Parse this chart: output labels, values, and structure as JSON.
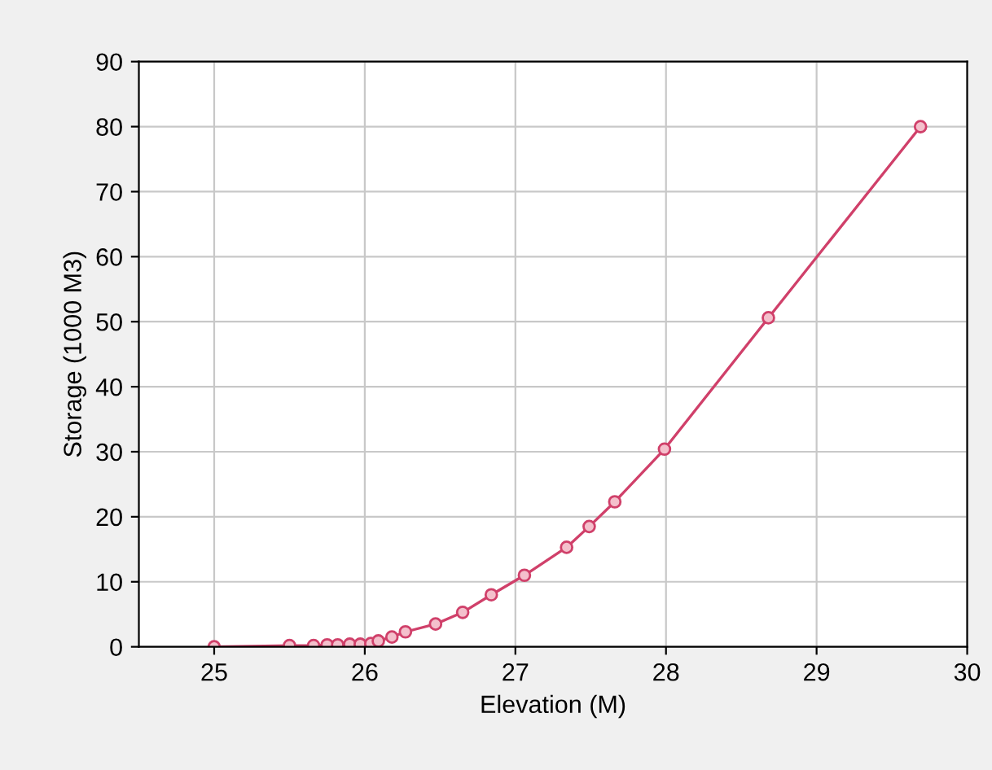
{
  "chart_data": {
    "type": "line",
    "xlabel": "Elevation (M)",
    "ylabel": "Storage (1000 M3)",
    "xlim": [
      24.5,
      30
    ],
    "xticks": [
      25,
      26,
      27,
      28,
      29,
      30
    ],
    "ylim": [
      0,
      90
    ],
    "yticks": [
      0,
      10,
      20,
      30,
      40,
      50,
      60,
      70,
      80,
      90
    ],
    "grid": true,
    "marker": "circle",
    "line_style": "solid",
    "series": [
      {
        "color": "#d0406a",
        "x": [
          25,
          25.5,
          25.66,
          25.75,
          25.82,
          25.9,
          25.97,
          26.04,
          26.09,
          26.18,
          26.27,
          26.47,
          26.65,
          26.84,
          27.06,
          27.34,
          27.49,
          27.66,
          27.99,
          28.68,
          29.69
        ],
        "values": [
          0,
          0.2,
          0.2,
          0.3,
          0.3,
          0.4,
          0.4,
          0.5,
          0.9,
          1.5,
          2.3,
          3.5,
          5.3,
          8,
          11,
          15.3,
          18.5,
          22.3,
          30.4,
          50.6,
          80
        ]
      }
    ]
  }
}
